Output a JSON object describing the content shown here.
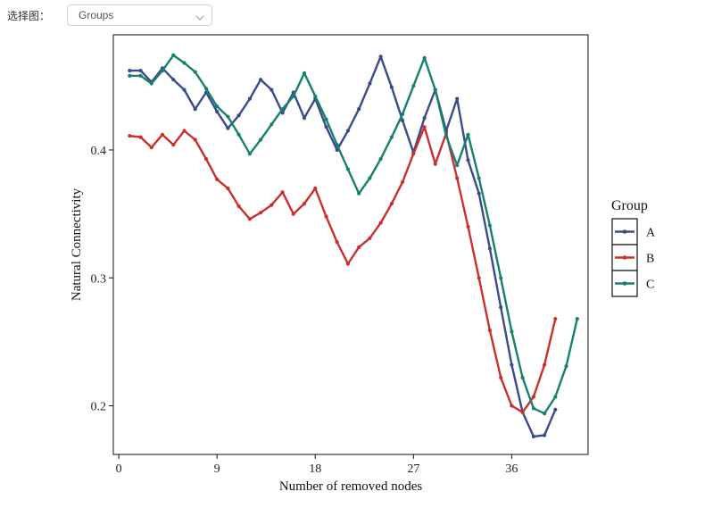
{
  "controls": {
    "select_label": "选择图：",
    "select_value": "Groups",
    "chevron_icon": "chevron-down-icon"
  },
  "chart_data": {
    "type": "line",
    "xlabel": "Number of removed nodes",
    "ylabel": "Natural Connectivity",
    "xlim": [
      -0.5,
      43
    ],
    "ylim": [
      0.162,
      0.49
    ],
    "x_ticks": [
      0,
      9,
      18,
      27,
      36
    ],
    "y_ticks": [
      0.2,
      0.3,
      0.4
    ],
    "x_tick_labels": [
      "0",
      "9",
      "18",
      "27",
      "36"
    ],
    "y_tick_labels": [
      "0.2",
      "0.3",
      "0.4"
    ],
    "grid": false,
    "legend": {
      "title": "Group",
      "position": "right"
    },
    "series": [
      {
        "name": "A",
        "color": "#3b4a8c",
        "x": [
          1,
          2,
          3,
          4,
          5,
          6,
          7,
          8,
          9,
          10,
          11,
          12,
          13,
          14,
          15,
          16,
          17,
          18,
          19,
          20,
          21,
          22,
          23,
          24,
          25,
          26,
          27,
          28,
          29,
          30,
          31,
          32,
          33,
          34,
          35,
          36,
          37,
          38,
          39,
          40
        ],
        "y": [
          0.462,
          0.462,
          0.453,
          0.464,
          0.455,
          0.447,
          0.432,
          0.445,
          0.43,
          0.417,
          0.427,
          0.44,
          0.455,
          0.447,
          0.429,
          0.445,
          0.425,
          0.44,
          0.418,
          0.4,
          0.415,
          0.432,
          0.452,
          0.473,
          0.449,
          0.423,
          0.398,
          0.425,
          0.447,
          0.415,
          0.44,
          0.392,
          0.366,
          0.323,
          0.277,
          0.232,
          0.195,
          0.176,
          0.177,
          0.197
        ]
      },
      {
        "name": "B",
        "color": "#c9302c",
        "x": [
          1,
          2,
          3,
          4,
          5,
          6,
          7,
          8,
          9,
          10,
          11,
          12,
          13,
          14,
          15,
          16,
          17,
          18,
          19,
          20,
          21,
          22,
          23,
          24,
          25,
          26,
          27,
          28,
          29,
          30,
          31,
          32,
          33,
          34,
          35,
          36,
          37,
          38,
          39,
          40
        ],
        "y": [
          0.411,
          0.41,
          0.402,
          0.412,
          0.404,
          0.415,
          0.408,
          0.393,
          0.377,
          0.37,
          0.356,
          0.346,
          0.351,
          0.357,
          0.367,
          0.35,
          0.358,
          0.37,
          0.348,
          0.328,
          0.311,
          0.324,
          0.331,
          0.343,
          0.358,
          0.375,
          0.397,
          0.418,
          0.389,
          0.413,
          0.378,
          0.34,
          0.3,
          0.259,
          0.222,
          0.2,
          0.195,
          0.207,
          0.232,
          0.268
        ]
      },
      {
        "name": "C",
        "color": "#17806d",
        "x": [
          1,
          2,
          3,
          4,
          5,
          6,
          7,
          8,
          9,
          10,
          11,
          12,
          13,
          14,
          15,
          16,
          17,
          18,
          19,
          20,
          21,
          22,
          23,
          24,
          25,
          26,
          27,
          28,
          29,
          30,
          31,
          32,
          33,
          34,
          35,
          36,
          37,
          38,
          39,
          40,
          41,
          42
        ],
        "y": [
          0.458,
          0.458,
          0.452,
          0.462,
          0.474,
          0.468,
          0.461,
          0.448,
          0.434,
          0.426,
          0.412,
          0.397,
          0.408,
          0.42,
          0.432,
          0.442,
          0.46,
          0.442,
          0.424,
          0.404,
          0.385,
          0.366,
          0.378,
          0.393,
          0.41,
          0.428,
          0.45,
          0.472,
          0.447,
          0.411,
          0.388,
          0.412,
          0.378,
          0.341,
          0.3,
          0.258,
          0.222,
          0.198,
          0.194,
          0.207,
          0.231,
          0.268
        ]
      }
    ]
  }
}
